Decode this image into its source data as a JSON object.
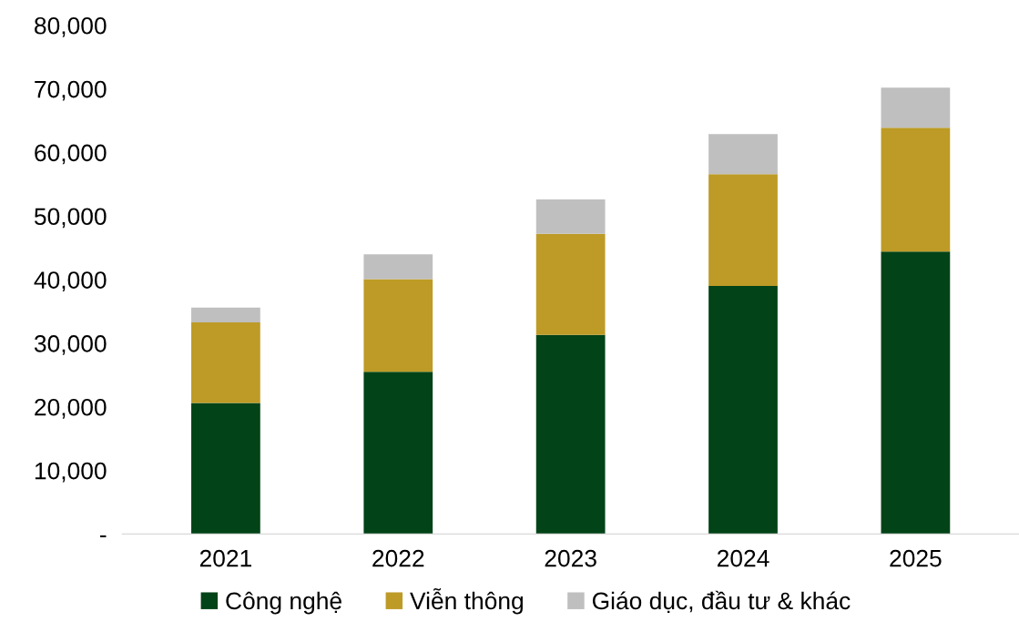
{
  "chart_data": {
    "type": "bar",
    "stacked": true,
    "categories": [
      "2021",
      "2022",
      "2023",
      "2024",
      "2025"
    ],
    "series": [
      {
        "name": "Công nghệ",
        "color": "#024317",
        "values": [
          20600,
          25500,
          31300,
          39000,
          44400
        ]
      },
      {
        "name": "Viễn thông",
        "color": "#bd9b26",
        "values": [
          12700,
          14600,
          15900,
          17600,
          19500
        ]
      },
      {
        "name": "Giáo dục, đầu tư & khác",
        "color": "#bfbfbf",
        "values": [
          2300,
          3900,
          5400,
          6300,
          6300
        ]
      }
    ],
    "ylim": [
      0,
      80000
    ],
    "yticks": [
      {
        "value": 0,
        "label": "-"
      },
      {
        "value": 10000,
        "label": "10,000"
      },
      {
        "value": 20000,
        "label": "20,000"
      },
      {
        "value": 30000,
        "label": "30,000"
      },
      {
        "value": 40000,
        "label": "40,000"
      },
      {
        "value": 50000,
        "label": "50,000"
      },
      {
        "value": 60000,
        "label": "60,000"
      },
      {
        "value": 70000,
        "label": "70,000"
      },
      {
        "value": 80000,
        "label": "80,000"
      }
    ],
    "grid": false,
    "legend": "bottom"
  }
}
